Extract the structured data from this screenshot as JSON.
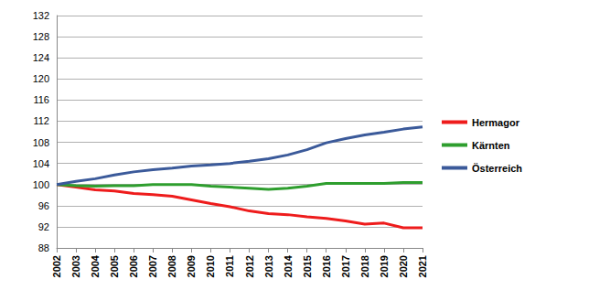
{
  "chart_data": {
    "type": "line",
    "categories": [
      "2002",
      "2003",
      "2004",
      "2005",
      "2006",
      "2007",
      "2008",
      "2009",
      "2010",
      "2011",
      "2012",
      "2013",
      "2014",
      "2015",
      "2016",
      "2017",
      "2018",
      "2019",
      "2020",
      "2021"
    ],
    "series": [
      {
        "name": "Hermagor",
        "color": "#ee1c1c",
        "values": [
          100,
          99.5,
          99.0,
          98.8,
          98.3,
          98.1,
          97.8,
          97.1,
          96.4,
          95.8,
          95.0,
          94.5,
          94.3,
          93.9,
          93.6,
          93.1,
          92.5,
          92.7,
          91.8,
          91.8
        ]
      },
      {
        "name": "Kärnten",
        "color": "#2e9e2e",
        "values": [
          100,
          99.8,
          99.7,
          99.8,
          99.8,
          100.0,
          100.0,
          100.0,
          99.7,
          99.5,
          99.3,
          99.1,
          99.3,
          99.7,
          100.2,
          100.2,
          100.2,
          100.2,
          100.4,
          100.4
        ]
      },
      {
        "name": "Österreich",
        "color": "#3b5a9a",
        "values": [
          100,
          100.6,
          101.1,
          101.8,
          102.4,
          102.8,
          103.1,
          103.5,
          103.7,
          104.0,
          104.4,
          104.9,
          105.6,
          106.6,
          107.9,
          108.7,
          109.4,
          109.9,
          110.5,
          110.9
        ]
      }
    ],
    "ylim": [
      88,
      132
    ],
    "yticks": [
      88,
      92,
      96,
      100,
      104,
      108,
      112,
      116,
      120,
      124,
      128,
      132
    ],
    "grid": true,
    "legend": "right"
  }
}
